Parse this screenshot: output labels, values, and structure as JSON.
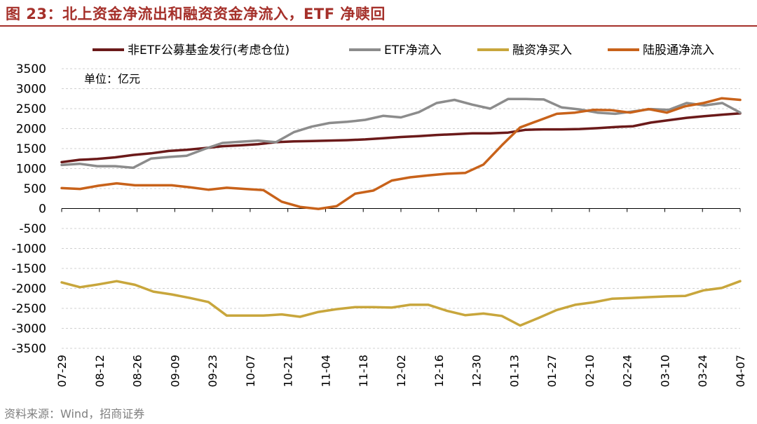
{
  "figure": {
    "title": "图 23：北上资金净流出和融资资金净流入，ETF 净赎回",
    "source": "资料来源：Wind，招商证券",
    "accent_color": "#a5302a"
  },
  "chart_data": {
    "type": "line",
    "title": "",
    "xlabel": "",
    "ylabel": "",
    "unit_label": "单位：亿元",
    "ylim": [
      -3500,
      3500
    ],
    "yticks": [
      3500,
      3000,
      2500,
      2000,
      1500,
      1000,
      500,
      0,
      -500,
      -1000,
      -1500,
      -2000,
      -2500,
      -3000,
      -3500
    ],
    "x_tick_labels": [
      "07-29",
      "08-12",
      "08-26",
      "09-09",
      "09-23",
      "10-07",
      "10-21",
      "11-04",
      "11-18",
      "12-02",
      "12-16",
      "12-30",
      "01-13",
      "01-27",
      "02-10",
      "02-24",
      "03-10",
      "03-24",
      "04-07"
    ],
    "grid": "horizontal",
    "legend_position": "top",
    "series": [
      {
        "name": "非ETF公募基金发行(考虑仓位)",
        "color": "#6b1a1a",
        "values": [
          1160,
          1220,
          1240,
          1280,
          1340,
          1380,
          1440,
          1470,
          1510,
          1560,
          1580,
          1610,
          1660,
          1680,
          1690,
          1700,
          1710,
          1730,
          1760,
          1790,
          1810,
          1840,
          1860,
          1880,
          1880,
          1900,
          1970,
          1980,
          1980,
          1990,
          2010,
          2040,
          2060,
          2150,
          2210,
          2270,
          2310,
          2350,
          2380
        ]
      },
      {
        "name": "ETF净流入",
        "color": "#8c8c8c",
        "values": [
          1090,
          1120,
          1060,
          1060,
          1020,
          1250,
          1290,
          1320,
          1490,
          1640,
          1670,
          1700,
          1660,
          1910,
          2050,
          2140,
          2170,
          2220,
          2320,
          2280,
          2410,
          2640,
          2720,
          2600,
          2500,
          2740,
          2740,
          2730,
          2530,
          2480,
          2400,
          2370,
          2430,
          2490,
          2470,
          2640,
          2580,
          2640,
          2400
        ]
      },
      {
        "name": "融资净买入",
        "color": "#c8a63c",
        "values": [
          -1850,
          -1970,
          -1900,
          -1820,
          -1910,
          -2080,
          -2150,
          -2240,
          -2340,
          -2680,
          -2680,
          -2680,
          -2650,
          -2710,
          -2590,
          -2520,
          -2470,
          -2470,
          -2480,
          -2410,
          -2410,
          -2560,
          -2670,
          -2630,
          -2690,
          -2930,
          -2740,
          -2540,
          -2410,
          -2350,
          -2260,
          -2240,
          -2220,
          -2200,
          -2190,
          -2050,
          -1990,
          -1820
        ]
      },
      {
        "name": "陆股通净流入",
        "color": "#c8621a",
        "values": [
          510,
          490,
          570,
          630,
          580,
          580,
          580,
          530,
          470,
          520,
          490,
          460,
          170,
          40,
          -10,
          60,
          370,
          450,
          700,
          780,
          830,
          870,
          890,
          1100,
          1580,
          2030,
          2200,
          2370,
          2400,
          2470,
          2460,
          2400,
          2490,
          2400,
          2560,
          2640,
          2760,
          2720
        ]
      }
    ]
  }
}
